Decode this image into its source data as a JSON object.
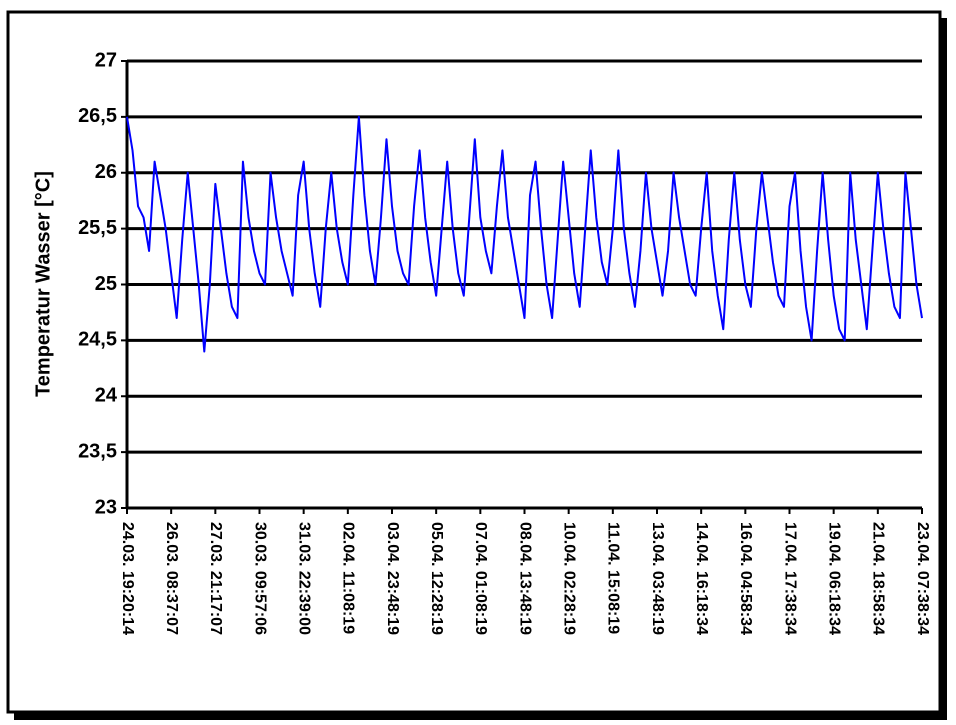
{
  "chart_data": {
    "type": "line",
    "ylabel": "Temperatur Wasser [°C]",
    "categories": [
      "24.03. 19:20:14",
      null,
      null,
      null,
      null,
      null,
      null,
      null,
      "26.03. 08:37:07",
      null,
      null,
      null,
      null,
      null,
      null,
      null,
      "27.03. 21:17:07",
      null,
      null,
      null,
      null,
      null,
      null,
      null,
      "30.03. 09:57:06",
      null,
      null,
      null,
      null,
      null,
      null,
      null,
      "31.03. 22:39:00",
      null,
      null,
      null,
      null,
      null,
      null,
      null,
      "02.04. 11:08:19",
      null,
      null,
      null,
      null,
      null,
      null,
      null,
      "03.04. 23:48:19",
      null,
      null,
      null,
      null,
      null,
      null,
      null,
      "05.04. 12:28:19",
      null,
      null,
      null,
      null,
      null,
      null,
      null,
      "07.04. 01:08:19",
      null,
      null,
      null,
      null,
      null,
      null,
      null,
      "08.04. 13:48:19",
      null,
      null,
      null,
      null,
      null,
      null,
      null,
      "10.04. 02:28:19",
      null,
      null,
      null,
      null,
      null,
      null,
      null,
      "11.04. 15:08:19",
      null,
      null,
      null,
      null,
      null,
      null,
      null,
      "13.04. 03:48:19",
      null,
      null,
      null,
      null,
      null,
      null,
      null,
      "14.04. 16:18:34",
      null,
      null,
      null,
      null,
      null,
      null,
      null,
      "16.04. 04:58:34",
      null,
      null,
      null,
      null,
      null,
      null,
      null,
      "17.04. 17:38:34",
      null,
      null,
      null,
      null,
      null,
      null,
      null,
      "19.04. 06:18:34",
      null,
      null,
      null,
      null,
      null,
      null,
      null,
      "21.04. 18:58:34",
      null,
      null,
      null,
      null,
      null,
      null,
      null,
      "23.04. 07:38:34"
    ],
    "values": [
      26.5,
      26.2,
      25.7,
      25.6,
      25.3,
      26.1,
      25.8,
      25.5,
      25.1,
      24.7,
      25.4,
      26.0,
      25.5,
      25.0,
      24.4,
      25.0,
      25.9,
      25.5,
      25.1,
      24.8,
      24.7,
      26.1,
      25.6,
      25.3,
      25.1,
      25.0,
      26.0,
      25.6,
      25.3,
      25.1,
      24.9,
      25.8,
      26.1,
      25.5,
      25.1,
      24.8,
      25.5,
      26.0,
      25.5,
      25.2,
      25.0,
      25.8,
      26.5,
      25.8,
      25.3,
      25.0,
      25.6,
      26.3,
      25.7,
      25.3,
      25.1,
      25.0,
      25.7,
      26.2,
      25.6,
      25.2,
      24.9,
      25.5,
      26.1,
      25.5,
      25.1,
      24.9,
      25.6,
      26.3,
      25.6,
      25.3,
      25.1,
      25.7,
      26.2,
      25.6,
      25.3,
      25.0,
      24.7,
      25.8,
      26.1,
      25.5,
      25.0,
      24.7,
      25.4,
      26.1,
      25.6,
      25.1,
      24.8,
      25.5,
      26.2,
      25.6,
      25.2,
      25.0,
      25.5,
      26.2,
      25.5,
      25.1,
      24.8,
      25.3,
      26.0,
      25.5,
      25.2,
      24.9,
      25.3,
      26.0,
      25.6,
      25.3,
      25.0,
      24.9,
      25.5,
      26.0,
      25.3,
      24.9,
      24.6,
      25.4,
      26.0,
      25.4,
      25.0,
      24.8,
      25.5,
      26.0,
      25.6,
      25.2,
      24.9,
      24.8,
      25.7,
      26.0,
      25.3,
      24.8,
      24.5,
      25.3,
      26.0,
      25.4,
      24.9,
      24.6,
      24.5,
      26.0,
      25.4,
      25.0,
      24.6,
      25.3,
      26.0,
      25.5,
      25.1,
      24.8,
      24.7,
      26.0,
      25.5,
      25.0,
      24.7
    ],
    "color": "#0000ff",
    "ylim": [
      23,
      27
    ],
    "yticks": [
      23,
      {
        "value": 23.5,
        "label": "23,5"
      },
      24,
      {
        "value": 24.5,
        "label": "24,5"
      },
      25,
      {
        "value": 25.5,
        "label": "25,5"
      },
      26,
      {
        "value": 26.5,
        "label": "26,5"
      },
      27
    ],
    "grid": true
  }
}
